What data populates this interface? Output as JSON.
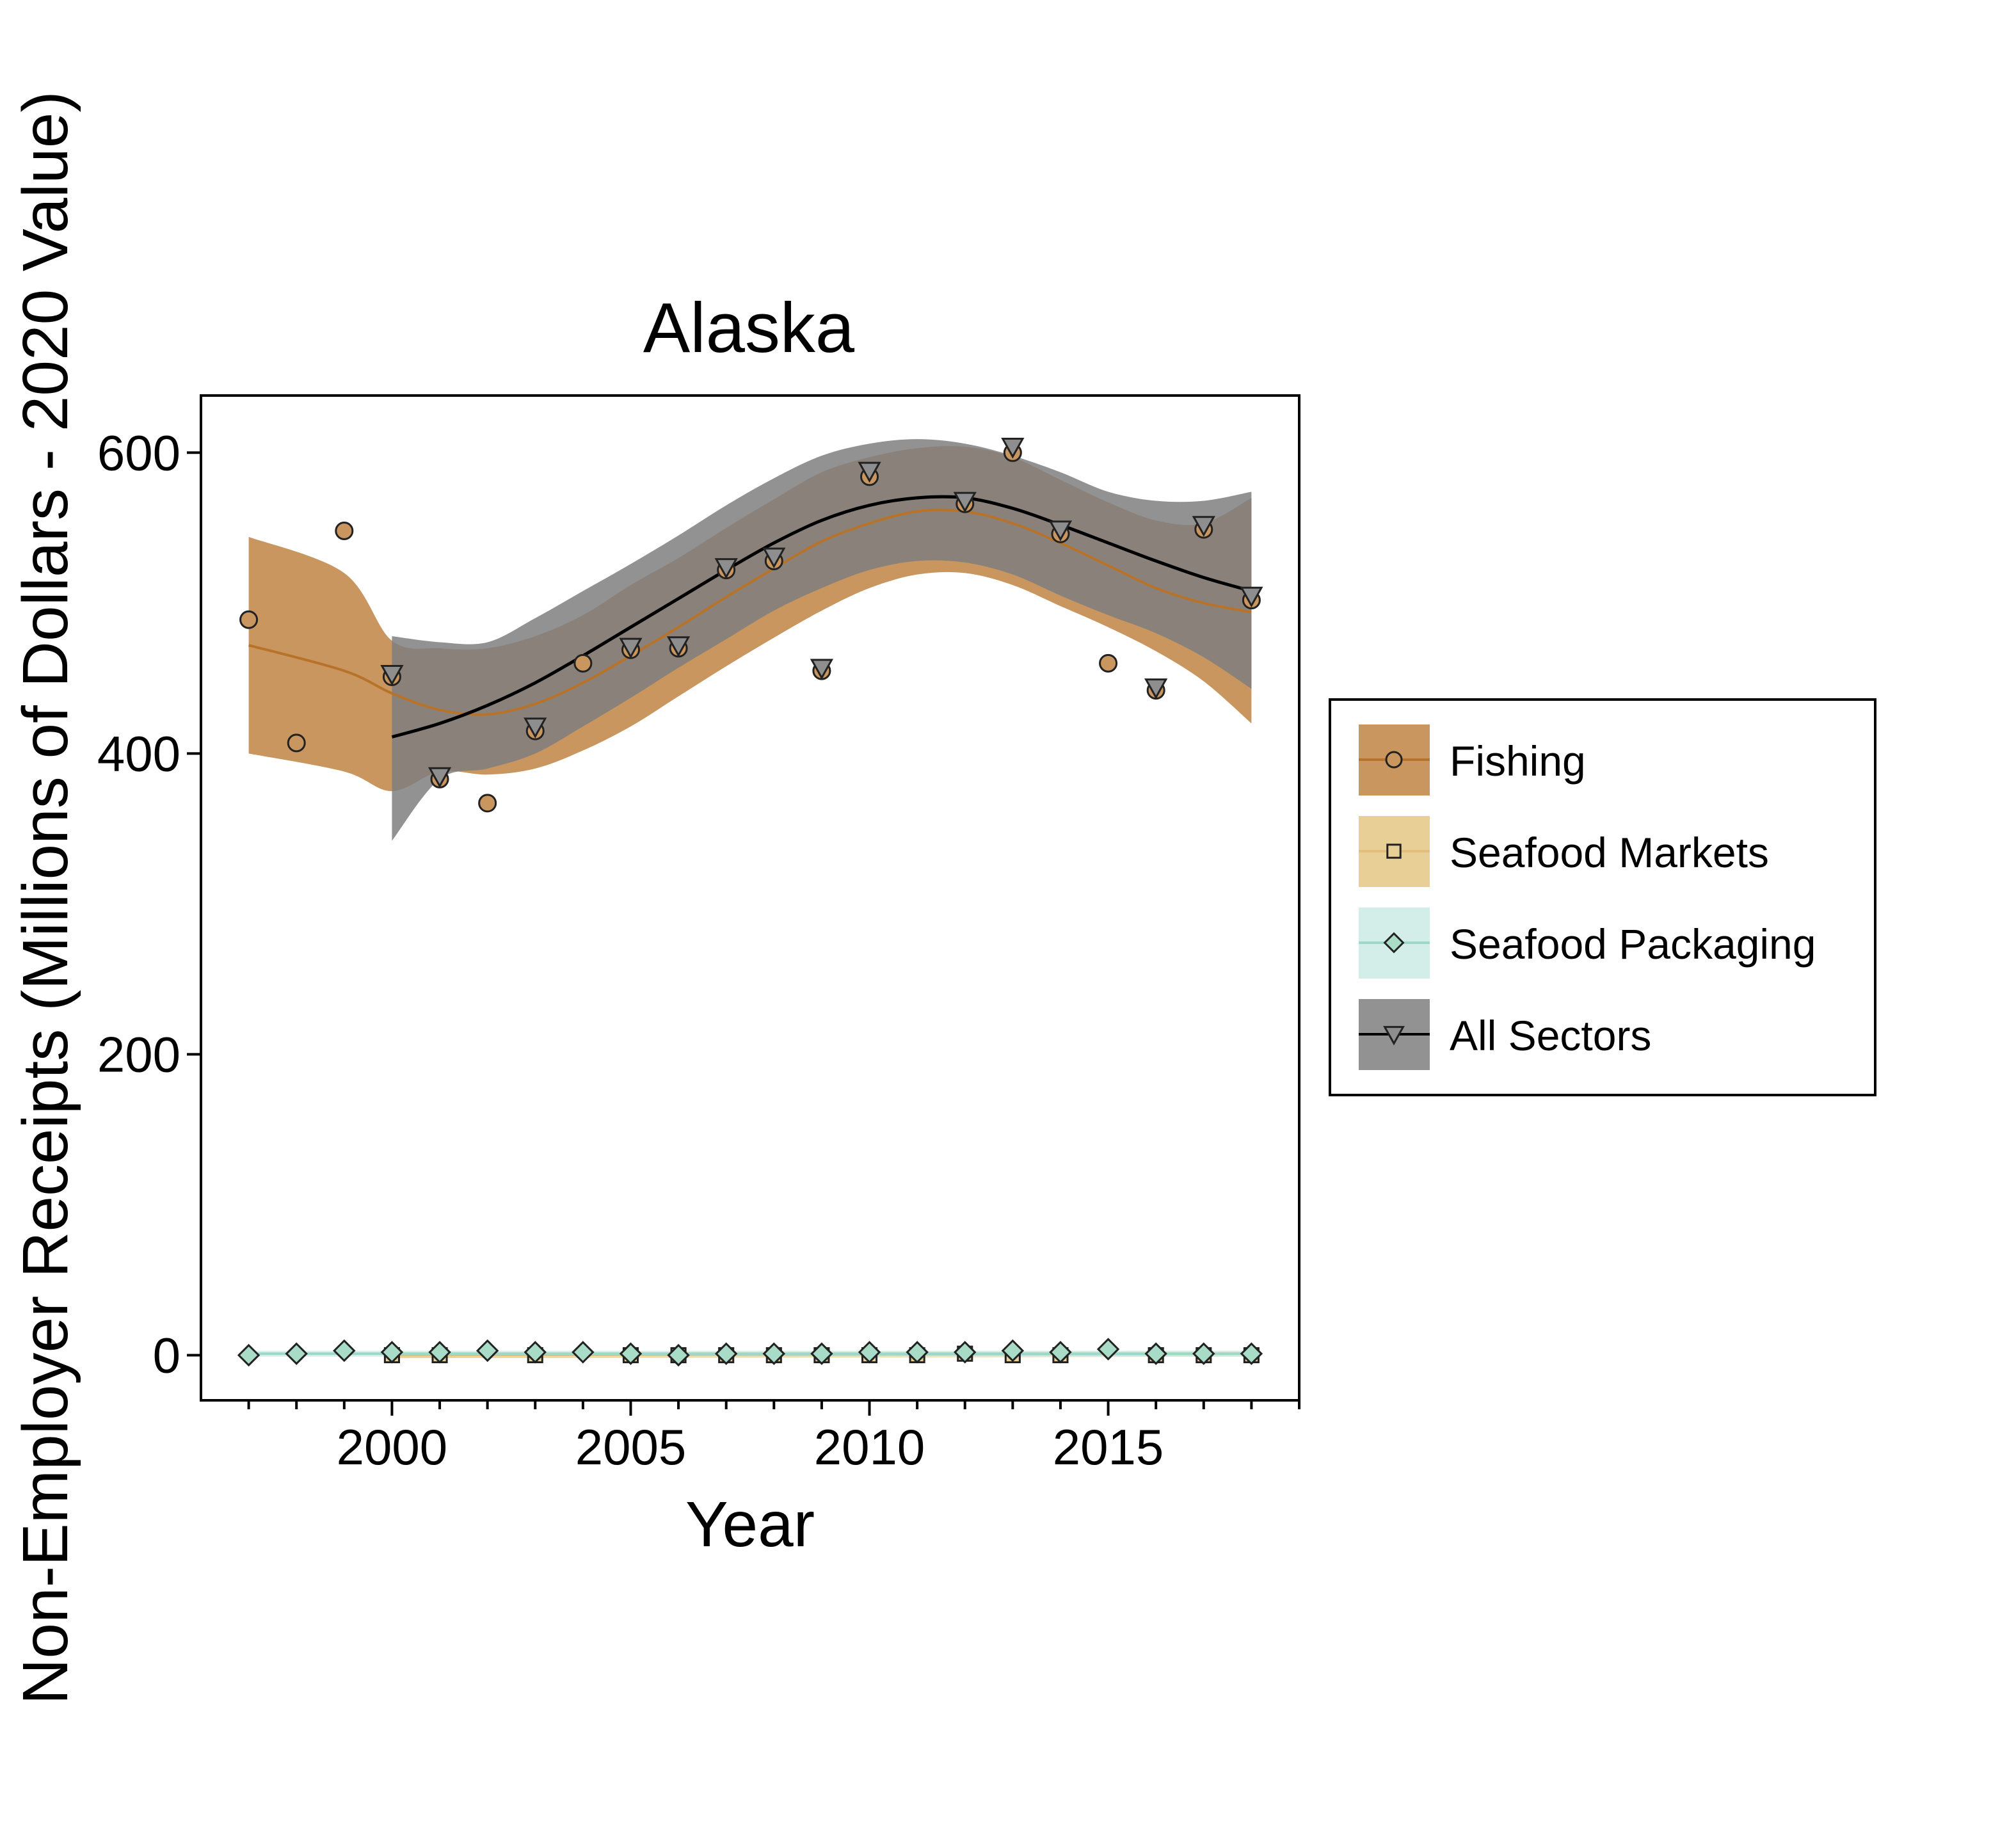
{
  "chart_data": {
    "type": "scatter",
    "title": "Alaska",
    "xlabel": "Year",
    "ylabel": "Non-Employer Receipts (Millions of Dollars - 2020 Value)",
    "xlim": [
      1996,
      2019
    ],
    "ylim": [
      -30,
      638
    ],
    "x_ticks": [
      2000,
      2005,
      2010,
      2015
    ],
    "y_ticks": [
      0,
      200,
      400,
      600
    ],
    "grid": false,
    "legend_position": "right",
    "series": [
      {
        "name": "Fishing",
        "marker": "circle",
        "color": "#C8965E",
        "line_color": "#B8732A",
        "band_color": "#C8965E",
        "x": [
          1997,
          1998,
          1999,
          2000,
          2001,
          2002,
          2003,
          2004,
          2005,
          2006,
          2007,
          2008,
          2009,
          2010,
          2011,
          2012,
          2013,
          2014,
          2015,
          2016,
          2017,
          2018
        ],
        "y": [
          489,
          407,
          548,
          451,
          383,
          367,
          415,
          460,
          469,
          470,
          522,
          528,
          455,
          584,
          null,
          566,
          600,
          546,
          460,
          442,
          549,
          502
        ],
        "trend": {
          "x": [
            1997,
            1999,
            2000,
            2001,
            2002,
            2003,
            2004,
            2005,
            2006,
            2007,
            2008,
            2009,
            2010,
            2011,
            2012,
            2013,
            2014,
            2015,
            2016,
            2017,
            2018
          ],
          "y": [
            472,
            455,
            440,
            429,
            426,
            433,
            447,
            465,
            484,
            504,
            523,
            541,
            553,
            561,
            561,
            553,
            540,
            525,
            510,
            500,
            494
          ],
          "lower": [
            400,
            388,
            375,
            388,
            386,
            390,
            402,
            418,
            438,
            458,
            477,
            495,
            510,
            519,
            520,
            512,
            498,
            484,
            468,
            448,
            420
          ],
          "upper": [
            544,
            520,
            475,
            470,
            470,
            478,
            492,
            512,
            530,
            550,
            569,
            587,
            597,
            603,
            604,
            597,
            582,
            567,
            555,
            553,
            570
          ]
        }
      },
      {
        "name": "Seafood Markets",
        "marker": "square",
        "color": "#E8CF95",
        "line_color": "#E0C07C",
        "band_color": "#E8CF95",
        "x": [
          2000,
          2001,
          2003,
          2005,
          2006,
          2007,
          2008,
          2009,
          2010,
          2011,
          2012,
          2013,
          2014,
          2016,
          2017,
          2018
        ],
        "y": [
          0,
          0,
          0,
          0,
          0,
          0,
          0,
          0,
          0,
          0,
          1,
          0,
          0,
          0,
          0,
          0
        ],
        "trend": {
          "x": [
            2000,
            2018
          ],
          "y": [
            0,
            1
          ],
          "lower": [
            -2,
            -1
          ],
          "upper": [
            2,
            3
          ]
        }
      },
      {
        "name": "Seafood Packaging",
        "marker": "diamond",
        "color": "#A8DCC7",
        "line_color": "#9ED8C8",
        "band_color": "#D3EEE8",
        "x": [
          1997,
          1998,
          1999,
          2000,
          2001,
          2002,
          2003,
          2004,
          2005,
          2006,
          2007,
          2008,
          2009,
          2010,
          2011,
          2012,
          2013,
          2014,
          2015,
          2016,
          2017,
          2018
        ],
        "y": [
          0,
          1,
          3,
          2,
          2,
          3,
          2,
          2,
          1,
          0,
          1,
          1,
          1,
          2,
          2,
          2,
          3,
          2,
          4,
          1,
          1,
          1
        ],
        "trend": {
          "x": [
            1997,
            2018
          ],
          "y": [
            1,
            1
          ],
          "lower": [
            -1,
            -1
          ],
          "upper": [
            3,
            3
          ]
        }
      },
      {
        "name": "All Sectors",
        "marker": "triangle-down",
        "color": "#8E8E8E",
        "line_color": "#000000",
        "band_color": "#7F7F7F",
        "x": [
          2000,
          2001,
          2003,
          2005,
          2006,
          2007,
          2008,
          2009,
          2010,
          2012,
          2013,
          2014,
          2017,
          2016,
          2018
        ],
        "y": [
          453,
          385,
          418,
          471,
          472,
          524,
          531,
          457,
          588,
          568,
          604,
          549,
          552,
          444,
          505
        ],
        "trend": {
          "x": [
            2000,
            2001,
            2002,
            2003,
            2004,
            2005,
            2006,
            2007,
            2008,
            2009,
            2010,
            2011,
            2012,
            2013,
            2014,
            2015,
            2016,
            2017,
            2018
          ],
          "y": [
            411,
            420,
            432,
            447,
            465,
            484,
            503,
            522,
            540,
            555,
            565,
            570,
            570,
            563,
            552,
            540,
            528,
            517,
            508
          ],
          "lower": [
            342,
            383,
            390,
            400,
            418,
            437,
            457,
            476,
            495,
            510,
            522,
            528,
            527,
            519,
            505,
            492,
            480,
            464,
            443
          ],
          "upper": [
            478,
            474,
            474,
            490,
            508,
            526,
            545,
            565,
            583,
            598,
            606,
            609,
            606,
            598,
            587,
            574,
            568,
            568,
            574
          ]
        }
      }
    ]
  }
}
